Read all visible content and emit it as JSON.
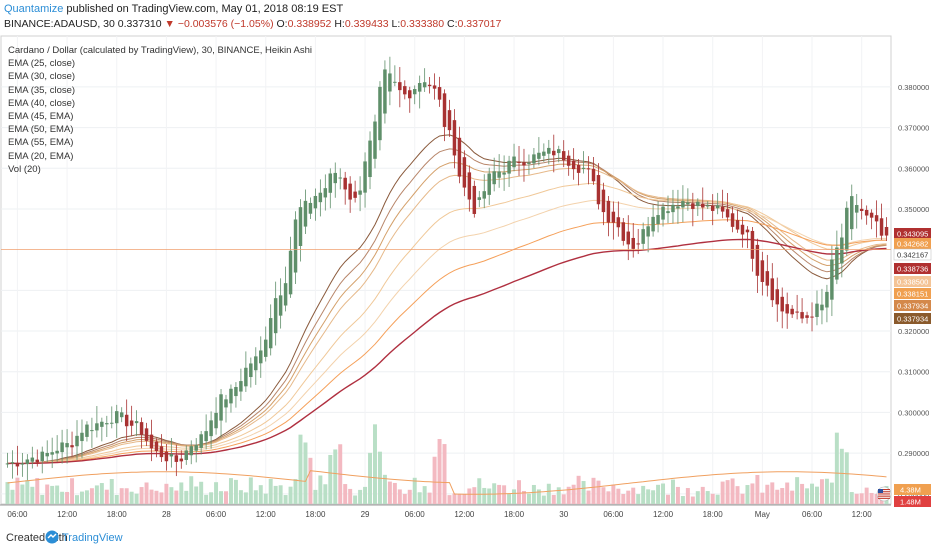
{
  "header": {
    "brand": "Quantamize",
    "published": "published on TradingView.com, May 01, 2018 08:19 EST",
    "symbol": "BINANCE:ADAUSD, 30",
    "last": "0.337310",
    "change": "▼ −0.003576 (−1.05%)",
    "o_label": "O:",
    "o": "0.338952",
    "h_label": "H:",
    "h": "0.339433",
    "l_label": "L:",
    "l": "0.333380",
    "c_label": "C:",
    "c": "0.337017"
  },
  "legend": {
    "title": "Cardano / Dollar (calculated by TradingView), 30, BINANCE, Heikin Ashi",
    "items": [
      "EMA (25, close)",
      "EMA (30, close)",
      "EMA (35, close)",
      "EMA (40, close)",
      "EMA (45, EMA)",
      "EMA (50, EMA)",
      "EMA (55, EMA)",
      "EMA (20, EMA)",
      "Vol (20)"
    ]
  },
  "footer": {
    "created": "Created with",
    "brand": "TradingView"
  },
  "colors": {
    "bull": "#5f8f6a",
    "bear": "#a83232",
    "vol_bull": "#b9dfc6",
    "vol_bear": "#f3b9c1",
    "ema_colors": [
      "#8a5a3c",
      "#b8866a",
      "#d4a06a",
      "#e6b98a",
      "#f0c898",
      "#f3d2ac",
      "#f5a05a",
      "#b03040"
    ],
    "vol_ma": "#f0a060"
  },
  "chart_data": {
    "type": "candlestick",
    "ylim": [
      0.2775,
      0.3925
    ],
    "y_ticks": [
      "0.380000",
      "0.370000",
      "0.360000",
      "0.350000",
      "0.330000",
      "0.320000",
      "0.310000",
      "0.300000",
      "0.290000",
      "0.280000"
    ],
    "y_tick_values": [
      0.38,
      0.37,
      0.36,
      0.35,
      0.33,
      0.32,
      0.31,
      0.3,
      0.29,
      0.28
    ],
    "x_ticks": [
      "06:00",
      "12:00",
      "18:00",
      "28",
      "06:00",
      "12:00",
      "18:00",
      "29",
      "06:00",
      "12:00",
      "18:00",
      "30",
      "06:00",
      "12:00",
      "18:00",
      "May",
      "06:00",
      "12:00"
    ],
    "x_tick_index": [
      2,
      12,
      22,
      32,
      42,
      52,
      62,
      72,
      82,
      92,
      102,
      112,
      122,
      132,
      142,
      152,
      162,
      172
    ],
    "candle_count": 178,
    "price_labels": [
      {
        "text": "0.343095",
        "value": 0.343095,
        "color": "#b03030"
      },
      {
        "text": "0.342682",
        "value": 0.342682,
        "color": "#f0a050"
      },
      {
        "text": "0.342167",
        "value": 0.342167,
        "color": "#ffffff"
      },
      {
        "text": "0.338736",
        "value": 0.338736,
        "color": "#b03030"
      },
      {
        "text": "0.338500",
        "value": 0.3385,
        "color": "#f4c496"
      },
      {
        "text": "0.338151",
        "value": 0.338151,
        "color": "#f0a050"
      },
      {
        "text": "0.337934",
        "value": 0.337934,
        "color": "#d4884a"
      },
      {
        "text": "0.337934",
        "value": 0.337934,
        "color": "#8a5a2c"
      }
    ],
    "vol_labels": [
      {
        "text": "4.38M",
        "color": "#f0a050"
      },
      {
        "text": "1.48M",
        "color": "#e04040"
      }
    ],
    "current_price": 0.34,
    "price_anchors": [
      [
        0,
        0.2875
      ],
      [
        6,
        0.289
      ],
      [
        12,
        0.292
      ],
      [
        16,
        0.2965
      ],
      [
        22,
        0.299
      ],
      [
        26,
        0.2965
      ],
      [
        30,
        0.29
      ],
      [
        34,
        0.288
      ],
      [
        38,
        0.293
      ],
      [
        44,
        0.304
      ],
      [
        50,
        0.313
      ],
      [
        55,
        0.33
      ],
      [
        59,
        0.35
      ],
      [
        63,
        0.354
      ],
      [
        66,
        0.359
      ],
      [
        70,
        0.352
      ],
      [
        73,
        0.366
      ],
      [
        76,
        0.383
      ],
      [
        80,
        0.378
      ],
      [
        84,
        0.382
      ],
      [
        86,
        0.379
      ],
      [
        89,
        0.368
      ],
      [
        92,
        0.355
      ],
      [
        94,
        0.35
      ],
      [
        98,
        0.359
      ],
      [
        103,
        0.362
      ],
      [
        110,
        0.364
      ],
      [
        116,
        0.36
      ],
      [
        121,
        0.348
      ],
      [
        126,
        0.341
      ],
      [
        131,
        0.35
      ],
      [
        136,
        0.352
      ],
      [
        142,
        0.35
      ],
      [
        148,
        0.345
      ],
      [
        152,
        0.333
      ],
      [
        156,
        0.325
      ],
      [
        160,
        0.323
      ],
      [
        164,
        0.326
      ],
      [
        167,
        0.34
      ],
      [
        170,
        0.352
      ],
      [
        174,
        0.347
      ],
      [
        177,
        0.342
      ]
    ]
  }
}
